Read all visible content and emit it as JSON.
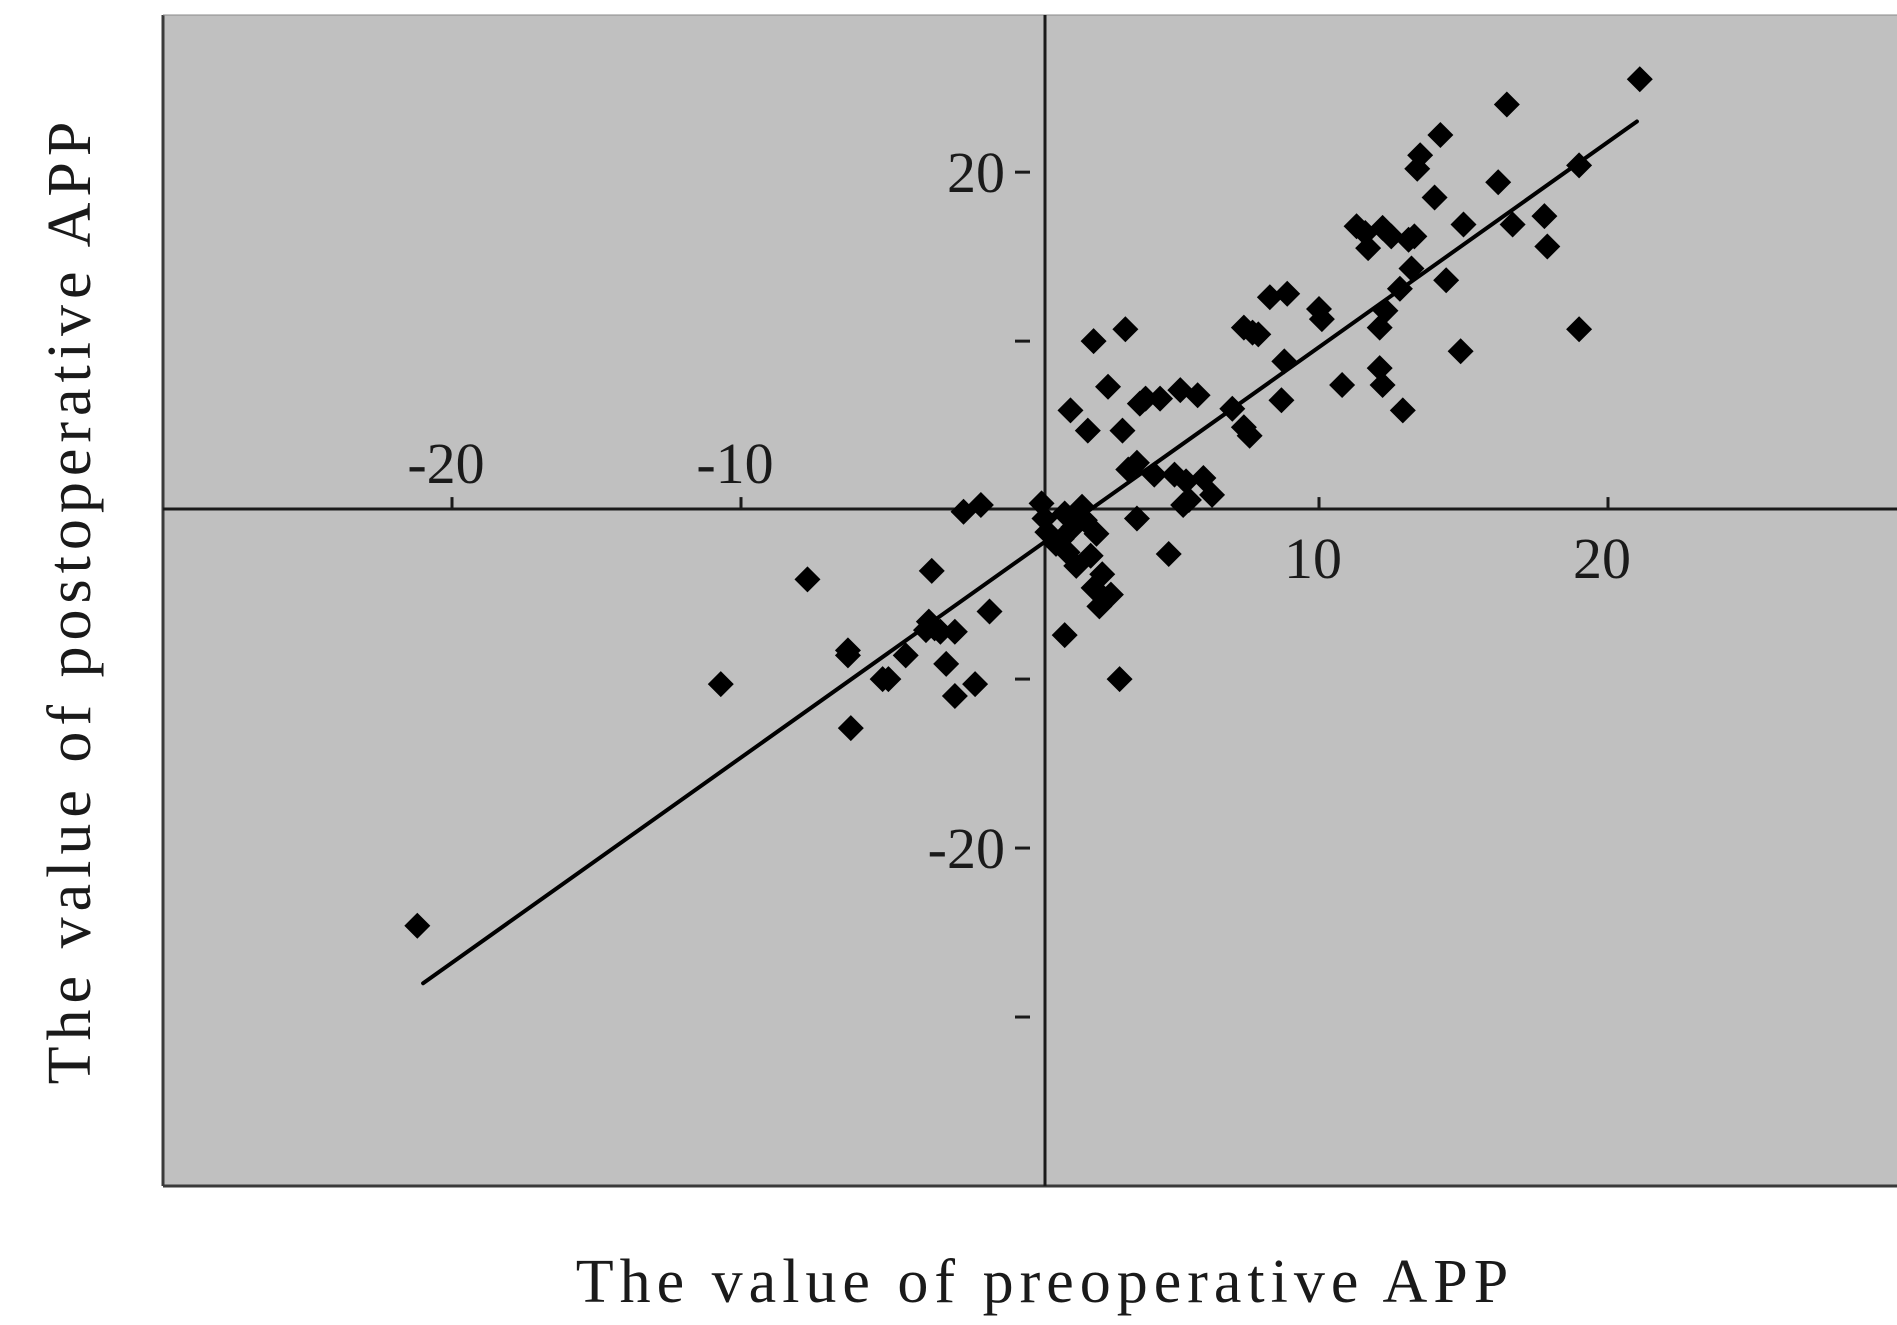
{
  "chart_data": {
    "type": "scatter",
    "xlabel": "The value of preoperative APP",
    "ylabel": "The value of postoperative APP",
    "xlim": [
      -30,
      30
    ],
    "ylim": [
      -40,
      29.3
    ],
    "x_ticks": [
      -20,
      -10,
      10,
      20
    ],
    "y_ticks": [
      20,
      -20
    ],
    "y_minor_ticks": [
      10,
      -10,
      -30
    ],
    "grid": false,
    "legend": "none",
    "colors": {
      "background": "#c0c0c0",
      "marker": "#000000",
      "line": "#000000",
      "axis": "#1a1a1a"
    },
    "trend_line": {
      "x": [
        -21,
        21
      ],
      "y": [
        -28,
        23
      ]
    },
    "series": [
      {
        "marker": "diamond",
        "points": [
          [
            -21.2,
            -24.6
          ],
          [
            -10.7,
            -10.3
          ],
          [
            -7.7,
            -4.1
          ],
          [
            -6.3,
            -8.3
          ],
          [
            -6.3,
            -8.6
          ],
          [
            -6.2,
            -12.9
          ],
          [
            -5.1,
            -10.0
          ],
          [
            -4.9,
            -10.0
          ],
          [
            -4.3,
            -8.6
          ],
          [
            -3.6,
            -7.1
          ],
          [
            -3.5,
            -6.6
          ],
          [
            -3.4,
            -3.6
          ],
          [
            -3.3,
            -7.0
          ],
          [
            -3.1,
            -7.2
          ],
          [
            -2.9,
            -9.1
          ],
          [
            -2.6,
            -11.0
          ],
          [
            -2.6,
            -7.2
          ],
          [
            -2.3,
            -0.1
          ],
          [
            -1.9,
            -10.3
          ],
          [
            -1.7,
            0.3
          ],
          [
            -1.4,
            -6.0
          ],
          [
            0.4,
            0.4
          ],
          [
            0.5,
            -0.5
          ],
          [
            0.6,
            -1.3
          ],
          [
            0.9,
            -2.0
          ],
          [
            1.1,
            -1.7
          ],
          [
            1.2,
            -7.4
          ],
          [
            1.2,
            -0.2
          ],
          [
            1.3,
            -2.5
          ],
          [
            1.4,
            5.9
          ],
          [
            1.5,
            -1.0
          ],
          [
            1.6,
            -3.3
          ],
          [
            1.7,
            -0.4
          ],
          [
            1.8,
            0.2
          ],
          [
            1.9,
            -0.6
          ],
          [
            2.0,
            4.7
          ],
          [
            2.1,
            -2.7
          ],
          [
            2.2,
            10.0
          ],
          [
            2.2,
            -4.6
          ],
          [
            2.3,
            -1.4
          ],
          [
            2.4,
            -5.7
          ],
          [
            2.5,
            -3.8
          ],
          [
            2.7,
            7.3
          ],
          [
            2.8,
            -5.0
          ],
          [
            3.1,
            -10.0
          ],
          [
            3.2,
            4.7
          ],
          [
            3.3,
            10.7
          ],
          [
            3.4,
            2.4
          ],
          [
            3.7,
            2.8
          ],
          [
            3.7,
            -0.5
          ],
          [
            3.8,
            6.3
          ],
          [
            4.0,
            6.6
          ],
          [
            4.3,
            2.1
          ],
          [
            4.5,
            6.6
          ],
          [
            4.8,
            -2.6
          ],
          [
            5.0,
            2.1
          ],
          [
            5.2,
            7.1
          ],
          [
            5.3,
            0.3
          ],
          [
            5.4,
            1.7
          ],
          [
            5.5,
            0.6
          ],
          [
            5.8,
            6.8
          ],
          [
            6.0,
            1.9
          ],
          [
            6.3,
            0.9
          ],
          [
            7.0,
            6.0
          ],
          [
            7.4,
            4.9
          ],
          [
            7.4,
            10.8
          ],
          [
            7.6,
            4.4
          ],
          [
            7.7,
            10.5
          ],
          [
            7.9,
            10.4
          ],
          [
            8.3,
            12.6
          ],
          [
            8.7,
            6.5
          ],
          [
            8.8,
            8.8
          ],
          [
            8.9,
            12.8
          ],
          [
            10.0,
            11.9
          ],
          [
            10.1,
            11.3
          ],
          [
            10.8,
            7.4
          ],
          [
            11.3,
            16.8
          ],
          [
            11.6,
            16.4
          ],
          [
            11.7,
            15.5
          ],
          [
            12.1,
            10.8
          ],
          [
            12.1,
            8.4
          ],
          [
            12.2,
            7.4
          ],
          [
            12.2,
            16.7
          ],
          [
            12.3,
            11.8
          ],
          [
            12.5,
            16.2
          ],
          [
            12.8,
            13.1
          ],
          [
            12.9,
            5.9
          ],
          [
            13.1,
            16.0
          ],
          [
            13.2,
            14.3
          ],
          [
            13.3,
            16.2
          ],
          [
            13.4,
            20.2
          ],
          [
            13.5,
            21.0
          ],
          [
            14.0,
            18.5
          ],
          [
            14.2,
            22.2
          ],
          [
            14.4,
            13.6
          ],
          [
            14.9,
            9.4
          ],
          [
            15.0,
            16.9
          ],
          [
            16.2,
            19.4
          ],
          [
            16.5,
            24.0
          ],
          [
            16.7,
            16.9
          ],
          [
            17.8,
            17.4
          ],
          [
            17.9,
            15.6
          ],
          [
            19.0,
            10.7
          ],
          [
            19.0,
            20.4
          ],
          [
            21.1,
            25.5
          ]
        ]
      }
    ]
  }
}
